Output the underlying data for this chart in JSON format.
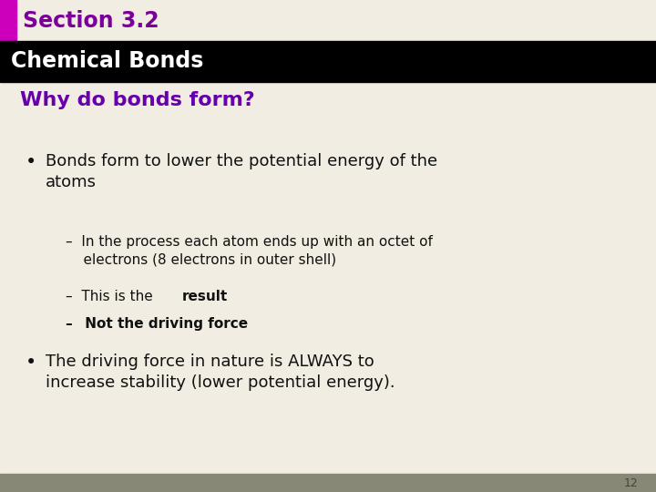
{
  "bg_color": "#f2ede3",
  "header_bar_color": "#000000",
  "accent_bar_color": "#cc00bb",
  "section_text": "Section 3.2",
  "section_color": "#7b0099",
  "header_text": "Chemical Bonds",
  "header_text_color": "#ffffff",
  "subheading": "Why do bonds form?",
  "subheading_color": "#6600aa",
  "bullet1_color": "#111111",
  "sub_color": "#111111",
  "bullet2_color": "#111111",
  "footer_bar_color": "#888877",
  "footer_number": "12",
  "footer_number_color": "#444444"
}
